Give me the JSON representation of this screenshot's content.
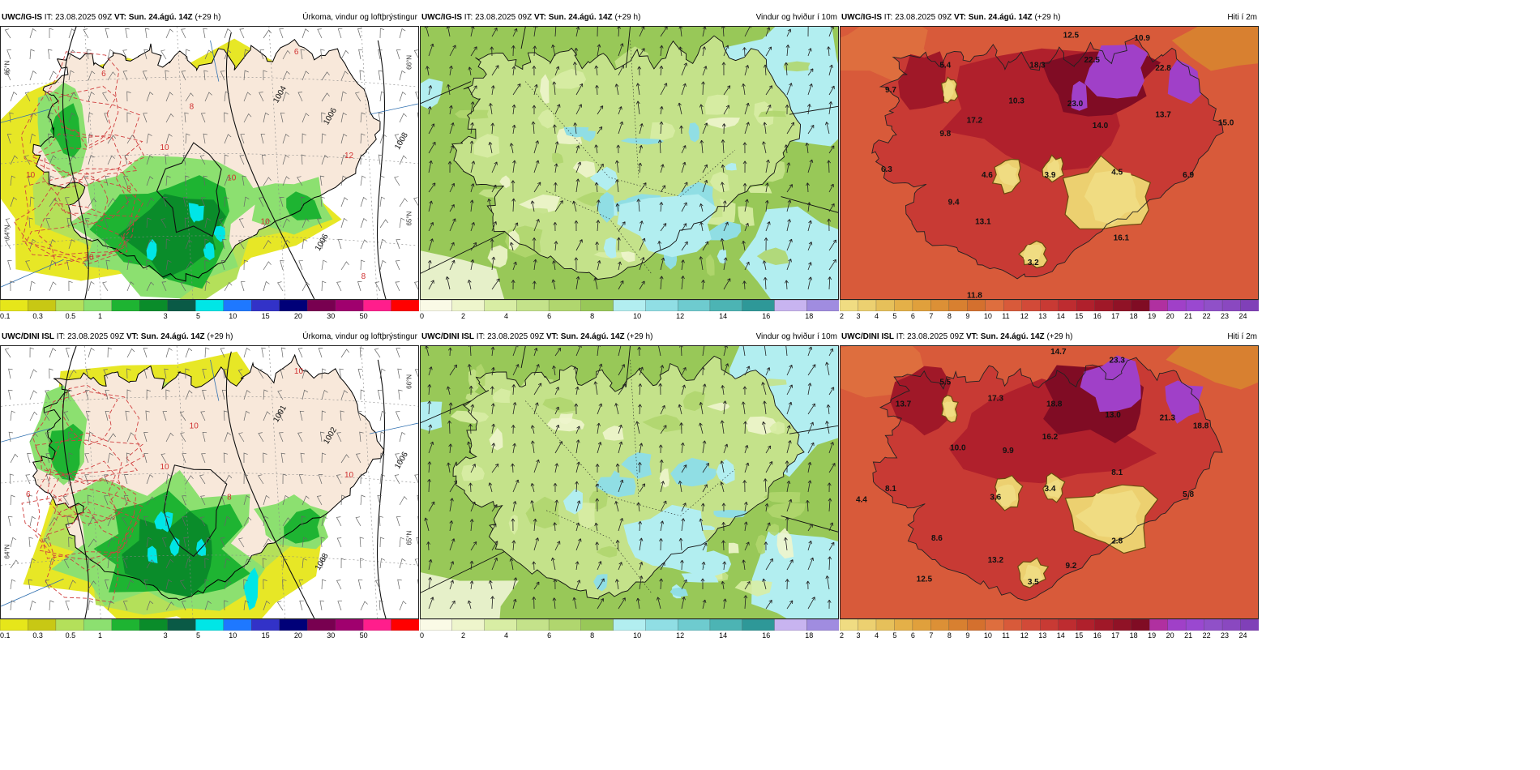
{
  "rows": [
    {
      "panels": [
        {
          "model": "UWC/IG-IS",
          "it_label": "IT:",
          "it": "23.08.2025 09Z",
          "vt_label": "VT:",
          "vt": "Sun. 24.ágú. 14Z",
          "lead": "(+29 h)",
          "title": "Úrkoma, vindur og loftþrýstingur",
          "type": "precip",
          "isobars": [
            "1004",
            "1006",
            "1008",
            "1006"
          ],
          "temp_contours": [
            "6",
            "8",
            "10",
            "12",
            "10",
            "10",
            "8",
            "6",
            "8",
            "10",
            "10"
          ],
          "lat_labels": [
            "66°N",
            "65°N",
            "64°N",
            "65°N"
          ]
        },
        {
          "model": "UWC/IG-IS",
          "it_label": "IT:",
          "it": "23.08.2025 09Z",
          "vt_label": "VT:",
          "vt": "Sun. 24.ágú. 14Z",
          "lead": "(+29 h)",
          "title": "Vindur og hviður í 10m",
          "type": "wind"
        },
        {
          "model": "UWC/IG-IS",
          "it_label": "IT:",
          "it": "23.08.2025 09Z",
          "vt_label": "VT:",
          "vt": "Sun. 24.ágú. 14Z",
          "lead": "(+29 h)",
          "title": "Hiti í 2m",
          "type": "temp",
          "values": [
            "12.5",
            "10.9",
            "5.4",
            "18.3",
            "22.5",
            "22.8",
            "9.7",
            "10.3",
            "23.0",
            "17.2",
            "14.0",
            "13.7",
            "15.0",
            "9.8",
            "6.3",
            "4.6",
            "3.9",
            "4.5",
            "6.9",
            "9.4",
            "13.1",
            "16.1",
            "3.2",
            "11.8"
          ]
        }
      ]
    },
    {
      "panels": [
        {
          "model": "UWC/DINI ISL",
          "it_label": "IT:",
          "it": "23.08.2025 09Z",
          "vt_label": "VT:",
          "vt": "Sun. 24.ágú. 14Z",
          "lead": "(+29 h)",
          "title": "Úrkoma, vindur og loftþrýstingur",
          "type": "precip",
          "isobars": [
            "1001",
            "1002",
            "1006",
            "1008"
          ],
          "temp_contours": [
            "10",
            "10",
            "10",
            "10",
            "6",
            "8"
          ],
          "lat_labels": [
            "66°N",
            "65°N",
            "64°N"
          ]
        },
        {
          "model": "UWC/DINI ISL",
          "it_label": "IT:",
          "it": "23.08.2025 09Z",
          "vt_label": "VT:",
          "vt": "Sun. 24.ágú. 14Z",
          "lead": "(+29 h)",
          "title": "Vindur og hviður í 10m",
          "type": "wind"
        },
        {
          "model": "UWC/DINI ISL",
          "it_label": "IT:",
          "it": "23.08.2025 09Z",
          "vt_label": "VT:",
          "vt": "Sun. 24.ágú. 14Z",
          "lead": "(+29 h)",
          "title": "Hiti í 2m",
          "type": "temp",
          "values": [
            "14.7",
            "23.3",
            "5.5",
            "13.7",
            "17.3",
            "18.8",
            "13.0",
            "21.3",
            "18.8",
            "10.0",
            "9.9",
            "16.2",
            "8.1",
            "4.4",
            "8.1",
            "3.6",
            "3.4",
            "5.8",
            "8.6",
            "2.8",
            "13.2",
            "9.2",
            "12.5",
            "3.5"
          ]
        }
      ]
    }
  ],
  "colorbars": {
    "precip": {
      "labels": [
        "0.1",
        "0.3",
        "0.5",
        "1",
        "3",
        "5",
        "10",
        "15",
        "20",
        "30",
        "50"
      ],
      "colors": [
        "#e6e61a",
        "#c8c814",
        "#b4e05a",
        "#8ce070",
        "#1eb432",
        "#0a8c2a",
        "#0a5a46",
        "#00e6e6",
        "#1e78ff",
        "#3232c8",
        "#000078",
        "#780050",
        "#a0006e",
        "#ff1e8c",
        "#ff0000"
      ]
    },
    "wind": {
      "labels": [
        "0",
        "2",
        "4",
        "6",
        "8",
        "10",
        "12",
        "14",
        "16",
        "18"
      ],
      "colors": [
        "#fafae6",
        "#eef5cc",
        "#d8eda4",
        "#c4e28a",
        "#b0d66e",
        "#98c858",
        "#b2eef0",
        "#90dee4",
        "#6ecbcf",
        "#4cb4b4",
        "#2e9898",
        "#c8b4f0",
        "#a08ce0"
      ]
    },
    "temp": {
      "labels": [
        "2",
        "3",
        "4",
        "5",
        "6",
        "7",
        "8",
        "9",
        "10",
        "11",
        "12",
        "13",
        "14",
        "15",
        "16",
        "17",
        "18",
        "19",
        "20",
        "21",
        "22",
        "23",
        "24"
      ],
      "colors": [
        "#f0dc82",
        "#ecd070",
        "#e6c05a",
        "#e4b048",
        "#e0a03c",
        "#dc9036",
        "#d88030",
        "#d4702e",
        "#de6e3e",
        "#d85a3a",
        "#d24a38",
        "#c83a34",
        "#be2c30",
        "#b0202c",
        "#a01828",
        "#901226",
        "#800c24",
        "#b030a0",
        "#a040c8",
        "#9a48d0",
        "#9050c8",
        "#8a48c0",
        "#8040b8"
      ]
    }
  },
  "colors": {
    "land_dry": "#f8e8da",
    "sea": "#ffffff",
    "wind_base": "#b8d884"
  }
}
